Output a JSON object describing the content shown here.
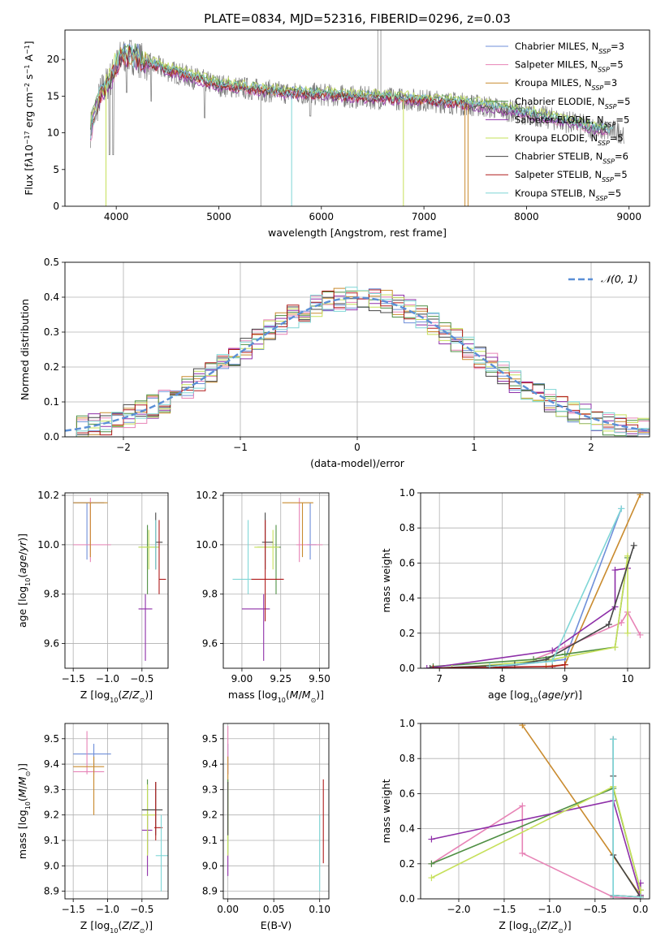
{
  "figure": {
    "title": "PLATE=0834, MJD=52316, FIBERID=0296, z=0.03"
  },
  "models": [
    {
      "label": "Chabrier MILES, N",
      "sub": "SSP",
      "suffix": "=3",
      "color": "#6f8fd9"
    },
    {
      "label": "Salpeter MILES, N",
      "sub": "SSP",
      "suffix": "=5",
      "color": "#e783b6"
    },
    {
      "label": "Kroupa MILES, N",
      "sub": "SSP",
      "suffix": "=3",
      "color": "#c98b2f"
    },
    {
      "label": "Chabrier ELODIE, N",
      "sub": "SSP",
      "suffix": "=5",
      "color": "#4f8f43"
    },
    {
      "label": "Salpeter ELODIE, N",
      "sub": "SSP",
      "suffix": "=5",
      "color": "#8e2fa8"
    },
    {
      "label": "Kroupa ELODIE, N",
      "sub": "SSP",
      "suffix": "=5",
      "color": "#c6e05a"
    },
    {
      "label": "Chabrier STELIB, N",
      "sub": "SSP",
      "suffix": "=6",
      "color": "#444444"
    },
    {
      "label": "Salpeter STELIB, N",
      "sub": "SSP",
      "suffix": "=5",
      "color": "#b01b1b"
    },
    {
      "label": "Kroupa STELIB, N",
      "sub": "SSP",
      "suffix": "=5",
      "color": "#7fd6d6"
    }
  ],
  "chart_data": [
    {
      "id": "spectrum",
      "type": "line",
      "title": "PLATE=0834, MJD=52316, FIBERID=0296, z=0.03",
      "xlabel": "wavelength [Angstrom, rest frame]",
      "ylabel_html": "Flux [f<tspan font-style='italic'>λ</tspan>10<tspan baseline-shift='super' font-size='8'>−17</tspan> erg cm<tspan baseline-shift='super' font-size='8'>−2</tspan> s<tspan baseline-shift='super' font-size='8'>−1</tspan> A<tspan baseline-shift='super' font-size='8'>−1</tspan>]",
      "xlim": [
        3500,
        9200
      ],
      "ylim": [
        0,
        24
      ],
      "xticks": [
        4000,
        5000,
        6000,
        7000,
        8000,
        9000
      ],
      "yticks": [
        0,
        5,
        10,
        15,
        20
      ],
      "grid": false,
      "legend": "upper-right",
      "continuum": [
        {
          "x": 3750,
          "y": 10.5
        },
        {
          "x": 3850,
          "y": 15.5
        },
        {
          "x": 3950,
          "y": 17.5
        },
        {
          "x": 4050,
          "y": 20.5
        },
        {
          "x": 4150,
          "y": 20.5
        },
        {
          "x": 4300,
          "y": 19.5
        },
        {
          "x": 4500,
          "y": 18.5
        },
        {
          "x": 4800,
          "y": 17.3
        },
        {
          "x": 5000,
          "y": 16.5
        },
        {
          "x": 5300,
          "y": 16.0
        },
        {
          "x": 5600,
          "y": 15.5
        },
        {
          "x": 6000,
          "y": 15.2
        },
        {
          "x": 6400,
          "y": 14.8
        },
        {
          "x": 6800,
          "y": 14.6
        },
        {
          "x": 7200,
          "y": 14.2
        },
        {
          "x": 7600,
          "y": 13.6
        },
        {
          "x": 8000,
          "y": 12.6
        },
        {
          "x": 8400,
          "y": 11.5
        },
        {
          "x": 8700,
          "y": 10.5
        },
        {
          "x": 8900,
          "y": 10.1
        }
      ]
    },
    {
      "id": "residuals",
      "type": "histogram",
      "xlabel": "(data-model)/error",
      "ylabel": "Normed distribution",
      "xlim": [
        -2.5,
        2.5
      ],
      "ylim": [
        0,
        0.5
      ],
      "xticks": [
        -2,
        -1,
        0,
        1,
        2
      ],
      "yticks": [
        0.0,
        0.1,
        0.2,
        0.3,
        0.4,
        0.5
      ],
      "grid": true,
      "legend": "upper-right",
      "gaussian_label": "𝒩(0, 1)",
      "gaussian_color": "#5b8fd6"
    },
    {
      "id": "z_age",
      "type": "scatter",
      "xlabel_html": "Z [log<tspan baseline-shift='sub' font-size='8'>10</tspan>(<tspan font-style='italic'>Z</tspan>/<tspan font-style='italic'>Z</tspan><tspan baseline-shift='sub' font-size='8'>⊙</tspan>)]",
      "ylabel_html": "age  [log<tspan baseline-shift='sub' font-size='8'>10</tspan>(<tspan font-style='italic'>age</tspan>/<tspan font-style='italic'>yr</tspan>)]",
      "xlim": [
        -1.62,
        -0.12
      ],
      "ylim": [
        9.5,
        10.21
      ],
      "xticks": [
        -1.5,
        -1.0,
        -0.5
      ],
      "yticks": [
        9.6,
        9.8,
        10.0,
        10.2
      ],
      "grid": true,
      "points": [
        {
          "m": 0,
          "x": -1.3,
          "y": 10.17,
          "xe": [
            -1.5,
            -1.05
          ],
          "ye": [
            9.94,
            10.17
          ]
        },
        {
          "m": 1,
          "x": -1.25,
          "y": 10.0,
          "xe": [
            -1.5,
            -0.95
          ],
          "ye": [
            9.93,
            10.19
          ]
        },
        {
          "m": 2,
          "x": -1.25,
          "y": 10.17,
          "xe": [
            -1.5,
            -1.0
          ],
          "ye": [
            9.95,
            10.17
          ]
        },
        {
          "m": 3,
          "x": -0.42,
          "y": 9.99,
          "xe": [
            -0.55,
            -0.25
          ],
          "ye": [
            9.8,
            10.08
          ]
        },
        {
          "m": 4,
          "x": -0.45,
          "y": 9.74,
          "xe": [
            -0.55,
            -0.35
          ],
          "ye": [
            9.53,
            9.8
          ]
        },
        {
          "m": 5,
          "x": -0.4,
          "y": 9.99,
          "xe": [
            -0.55,
            -0.25
          ],
          "ye": [
            9.9,
            10.06
          ]
        },
        {
          "m": 6,
          "x": -0.3,
          "y": 10.01,
          "xe": [
            -0.3,
            -0.2
          ],
          "ye": [
            9.9,
            10.13
          ]
        },
        {
          "m": 7,
          "x": -0.25,
          "y": 9.86,
          "xe": [
            -0.25,
            -0.15
          ],
          "ye": [
            9.8,
            10.1
          ]
        },
        {
          "m": 8,
          "x": -0.3,
          "y": 10.0,
          "xe": [
            -0.3,
            -0.3
          ],
          "ye": [
            9.9,
            10.1
          ]
        }
      ]
    },
    {
      "id": "mass_age",
      "type": "scatter",
      "xlabel_html": "mass [log<tspan baseline-shift='sub' font-size='8'>10</tspan>(<tspan font-style='italic'>M</tspan>/<tspan font-style='italic'>M</tspan><tspan baseline-shift='sub' font-size='8'>⊙</tspan>)]",
      "ylabel": "",
      "xlim": [
        8.88,
        9.56
      ],
      "ylim": [
        9.5,
        10.21
      ],
      "xticks": [
        9.0,
        9.25,
        9.5
      ],
      "yticks": [
        9.6,
        9.8,
        10.0,
        10.2
      ],
      "grid": true,
      "points": [
        {
          "m": 0,
          "x": 9.44,
          "y": 10.0,
          "xe": [
            9.42,
            9.48
          ],
          "ye": [
            9.94,
            10.17
          ]
        },
        {
          "m": 1,
          "x": 9.37,
          "y": 10.0,
          "xe": [
            9.35,
            9.52
          ],
          "ye": [
            9.93,
            10.19
          ]
        },
        {
          "m": 2,
          "x": 9.39,
          "y": 10.17,
          "xe": [
            9.26,
            9.46
          ],
          "ye": [
            9.95,
            10.17
          ]
        },
        {
          "m": 3,
          "x": 9.22,
          "y": 9.99,
          "xe": [
            9.1,
            9.25
          ],
          "ye": [
            9.8,
            10.08
          ]
        },
        {
          "m": 4,
          "x": 9.14,
          "y": 9.74,
          "xe": [
            9.0,
            9.18
          ],
          "ye": [
            9.53,
            9.8
          ]
        },
        {
          "m": 5,
          "x": 9.2,
          "y": 9.99,
          "xe": [
            9.08,
            9.24
          ],
          "ye": [
            9.9,
            10.06
          ]
        },
        {
          "m": 6,
          "x": 9.15,
          "y": 10.01,
          "xe": [
            9.13,
            9.2
          ],
          "ye": [
            9.9,
            10.13
          ]
        },
        {
          "m": 7,
          "x": 9.15,
          "y": 9.86,
          "xe": [
            9.06,
            9.27
          ],
          "ye": [
            9.69,
            10.1
          ]
        },
        {
          "m": 8,
          "x": 9.04,
          "y": 9.86,
          "xe": [
            8.94,
            9.06
          ],
          "ye": [
            9.8,
            10.1
          ]
        }
      ]
    },
    {
      "id": "age_weight",
      "type": "line",
      "xlabel_html": "age  [log<tspan baseline-shift='sub' font-size='8'>10</tspan>(<tspan font-style='italic'>age</tspan>/<tspan font-style='italic'>yr</tspan>)]",
      "ylabel": "mass weight",
      "xlim": [
        6.7,
        10.35
      ],
      "ylim": [
        0,
        1.0
      ],
      "xticks": [
        7,
        8,
        9,
        10
      ],
      "yticks": [
        0.0,
        0.2,
        0.4,
        0.6,
        0.8,
        1.0
      ],
      "grid": true,
      "series": [
        {
          "m": 0,
          "x": [
            8.0,
            9.0,
            9.9
          ],
          "y": [
            0.01,
            0.05,
            0.91
          ]
        },
        {
          "m": 1,
          "x": [
            8.5,
            9.0,
            9.9,
            10.0,
            10.2
          ],
          "y": [
            0.05,
            0.12,
            0.26,
            0.32,
            0.19
          ]
        },
        {
          "m": 2,
          "x": [
            8.7,
            9.0,
            10.2
          ],
          "y": [
            0.01,
            0.02,
            0.99
          ]
        },
        {
          "m": 3,
          "x": [
            6.9,
            8.5,
            9.0,
            9.8,
            10.0
          ],
          "y": [
            0.01,
            0.05,
            0.08,
            0.12,
            0.63
          ]
        },
        {
          "m": 4,
          "x": [
            6.8,
            8.8,
            9.8,
            9.8,
            10.0
          ],
          "y": [
            0.0,
            0.1,
            0.35,
            0.56,
            0.57
          ]
        },
        {
          "m": 5,
          "x": [
            7.2,
            8.8,
            9.8,
            10.0,
            10.0
          ],
          "y": [
            0.0,
            0.05,
            0.12,
            0.64,
            0.2
          ]
        },
        {
          "m": 6,
          "x": [
            6.85,
            8.2,
            8.7,
            9.7,
            10.1
          ],
          "y": [
            0.0,
            0.02,
            0.05,
            0.25,
            0.7
          ]
        },
        {
          "m": 7,
          "x": [
            6.9,
            8.8,
            9.0
          ],
          "y": [
            0.0,
            0.01,
            0.02
          ]
        },
        {
          "m": 8,
          "x": [
            7.8,
            8.8,
            9.9
          ],
          "y": [
            0.01,
            0.04,
            0.91
          ]
        }
      ]
    },
    {
      "id": "z_mass",
      "type": "scatter",
      "xlabel_html": "Z [log<tspan baseline-shift='sub' font-size='8'>10</tspan>(<tspan font-style='italic'>Z</tspan>/<tspan font-style='italic'>Z</tspan><tspan baseline-shift='sub' font-size='8'>⊙</tspan>)]",
      "ylabel_html": "mass [log<tspan baseline-shift='sub' font-size='8'>10</tspan>(<tspan font-style='italic'>M</tspan>/<tspan font-style='italic'>M</tspan><tspan baseline-shift='sub' font-size='8'>⊙</tspan>)]",
      "xlim": [
        -1.62,
        -0.12
      ],
      "ylim": [
        8.87,
        9.56
      ],
      "xticks": [
        -1.5,
        -1.0,
        -0.5
      ],
      "yticks": [
        8.9,
        9.0,
        9.1,
        9.2,
        9.3,
        9.4,
        9.5
      ],
      "grid": true,
      "points": [
        {
          "m": 0,
          "x": -1.2,
          "y": 9.44,
          "xe": [
            -1.5,
            -0.95
          ],
          "ye": [
            9.36,
            9.48
          ]
        },
        {
          "m": 1,
          "x": -1.3,
          "y": 9.37,
          "xe": [
            -1.5,
            -1.05
          ],
          "ye": [
            9.36,
            9.53
          ]
        },
        {
          "m": 2,
          "x": -1.2,
          "y": 9.39,
          "xe": [
            -1.5,
            -1.05
          ],
          "ye": [
            9.2,
            9.43
          ]
        },
        {
          "m": 3,
          "x": -0.42,
          "y": 9.22,
          "xe": [
            -0.5,
            -0.3
          ],
          "ye": [
            9.05,
            9.34
          ]
        },
        {
          "m": 4,
          "x": -0.42,
          "y": 9.14,
          "xe": [
            -0.5,
            -0.35
          ],
          "ye": [
            8.96,
            9.2
          ]
        },
        {
          "m": 5,
          "x": -0.42,
          "y": 9.2,
          "xe": [
            -0.5,
            -0.3
          ],
          "ye": [
            9.04,
            9.32
          ]
        },
        {
          "m": 6,
          "x": -0.3,
          "y": 9.22,
          "xe": [
            -0.5,
            -0.2
          ],
          "ye": [
            9.12,
            9.33
          ]
        },
        {
          "m": 7,
          "x": -0.3,
          "y": 9.15,
          "xe": [
            -0.32,
            -0.2
          ],
          "ye": [
            9.1,
            9.33
          ]
        },
        {
          "m": 8,
          "x": -0.22,
          "y": 9.04,
          "xe": [
            -0.3,
            -0.12
          ],
          "ye": [
            8.9,
            9.2
          ]
        }
      ]
    },
    {
      "id": "ebv_mass",
      "type": "scatter",
      "xlabel": "E(B-V)",
      "ylabel": "",
      "xlim": [
        -0.005,
        0.11
      ],
      "ylim": [
        8.87,
        9.56
      ],
      "xticks": [
        0.0,
        0.05,
        0.1
      ],
      "yticks": [
        8.9,
        9.0,
        9.1,
        9.2,
        9.3,
        9.4,
        9.5
      ],
      "grid": true,
      "points": [
        {
          "m": 0,
          "x": 0.0,
          "y": 9.44,
          "xe": [
            0.0,
            0.0
          ],
          "ye": [
            9.36,
            9.48
          ]
        },
        {
          "m": 1,
          "x": 0.0,
          "y": 9.37,
          "xe": [
            0.0,
            0.0
          ],
          "ye": [
            9.36,
            9.55
          ]
        },
        {
          "m": 2,
          "x": 0.0,
          "y": 9.39,
          "xe": [
            0.0,
            0.0
          ],
          "ye": [
            9.3,
            9.43
          ]
        },
        {
          "m": 3,
          "x": 0.0,
          "y": 9.22,
          "xe": [
            0.0,
            0.0
          ],
          "ye": [
            9.05,
            9.34
          ]
        },
        {
          "m": 4,
          "x": 0.0,
          "y": 9.0,
          "xe": [
            0.0,
            0.0
          ],
          "ye": [
            8.96,
            9.05
          ]
        },
        {
          "m": 5,
          "x": 0.0,
          "y": 9.2,
          "xe": [
            0.0,
            0.0
          ],
          "ye": [
            9.04,
            9.32
          ]
        },
        {
          "m": 6,
          "x": 0.0,
          "y": 9.22,
          "xe": [
            0.0,
            0.0
          ],
          "ye": [
            9.12,
            9.33
          ]
        },
        {
          "m": 7,
          "x": 0.104,
          "y": 9.15,
          "xe": [
            0.104,
            0.104
          ],
          "ye": [
            9.01,
            9.34
          ]
        },
        {
          "m": 8,
          "x": 0.1,
          "y": 9.0,
          "xe": [
            0.1,
            0.1
          ],
          "ye": [
            8.9,
            9.2
          ]
        }
      ]
    },
    {
      "id": "z_weight",
      "type": "line",
      "xlabel_html": "Z [log<tspan baseline-shift='sub' font-size='8'>10</tspan>(<tspan font-style='italic'>Z</tspan>/<tspan font-style='italic'>Z</tspan><tspan baseline-shift='sub' font-size='8'>⊙</tspan>)]",
      "ylabel": "mass weight",
      "xlim": [
        -2.42,
        0.1
      ],
      "ylim": [
        0,
        1.0
      ],
      "xticks": [
        -2.0,
        -1.5,
        -1.0,
        -0.5,
        0.0
      ],
      "yticks": [
        0.0,
        0.2,
        0.4,
        0.6,
        0.8,
        1.0
      ],
      "grid": true,
      "series": [
        {
          "m": 0,
          "x": [
            -0.3,
            -0.3,
            0.0
          ],
          "y": [
            0.91,
            0.02,
            0.01
          ]
        },
        {
          "m": 1,
          "x": [
            -2.3,
            -1.3,
            -1.3,
            -0.3,
            0.0
          ],
          "y": [
            0.2,
            0.53,
            0.26,
            0.01,
            0.0
          ]
        },
        {
          "m": 2,
          "x": [
            -1.3,
            0.0,
            0.0
          ],
          "y": [
            0.99,
            0.02,
            0.01
          ]
        },
        {
          "m": 3,
          "x": [
            -2.3,
            -0.3,
            0.0,
            0.0
          ],
          "y": [
            0.2,
            0.63,
            0.05,
            0.02
          ]
        },
        {
          "m": 4,
          "x": [
            -2.3,
            -0.3,
            0.0,
            0.0
          ],
          "y": [
            0.34,
            0.56,
            0.02,
            0.09
          ]
        },
        {
          "m": 5,
          "x": [
            -2.3,
            -0.3,
            0.0,
            0.0
          ],
          "y": [
            0.12,
            0.64,
            0.05,
            0.01
          ]
        },
        {
          "m": 6,
          "x": [
            -0.3,
            -0.3,
            -0.3,
            0.0
          ],
          "y": [
            0.91,
            0.7,
            0.25,
            0.01
          ]
        },
        {
          "m": 7,
          "x": [
            -0.3,
            0.0
          ],
          "y": [
            0.02,
            0.01
          ]
        },
        {
          "m": 8,
          "x": [
            -0.3,
            -0.3,
            0.0
          ],
          "y": [
            0.91,
            0.02,
            0.01
          ]
        }
      ]
    }
  ]
}
